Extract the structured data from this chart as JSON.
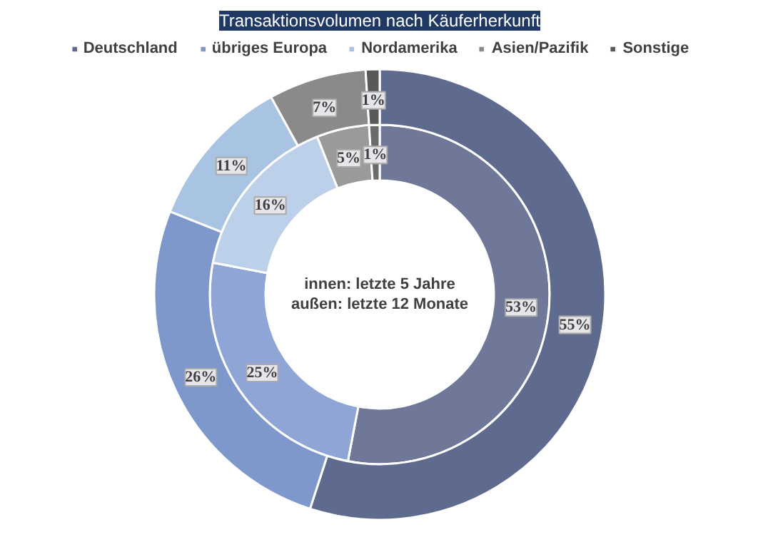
{
  "chart_data": {
    "type": "donut",
    "title": "Transaktionsvolumen nach Käuferherkunft",
    "categories": [
      "Deutschland",
      "übriges Europa",
      "Nordamerika",
      "Asien/Pazifik",
      "Sonstige"
    ],
    "series": [
      {
        "values": [
          53,
          25,
          16,
          5,
          1
        ],
        "colors": [
          "#6f7899",
          "#8ea5d6",
          "#bcd0ea",
          "#9a9a9a",
          "#6b6b6b"
        ],
        "value_labels": [
          "53%",
          "25%",
          "16%",
          "5%",
          "1%"
        ]
      },
      {
        "values": [
          55,
          26,
          11,
          7,
          1
        ],
        "colors": [
          "#5f6a8f",
          "#7e98cc",
          "#a9c3e3",
          "#8a8a8a",
          "#595959"
        ],
        "value_labels": [
          "55%",
          "26%",
          "11%",
          "7%",
          "1%"
        ]
      }
    ],
    "annotations": [
      "innen: letzte 5 Jahre",
      "außen: letzte 12 Monate"
    ],
    "legend": "top"
  }
}
